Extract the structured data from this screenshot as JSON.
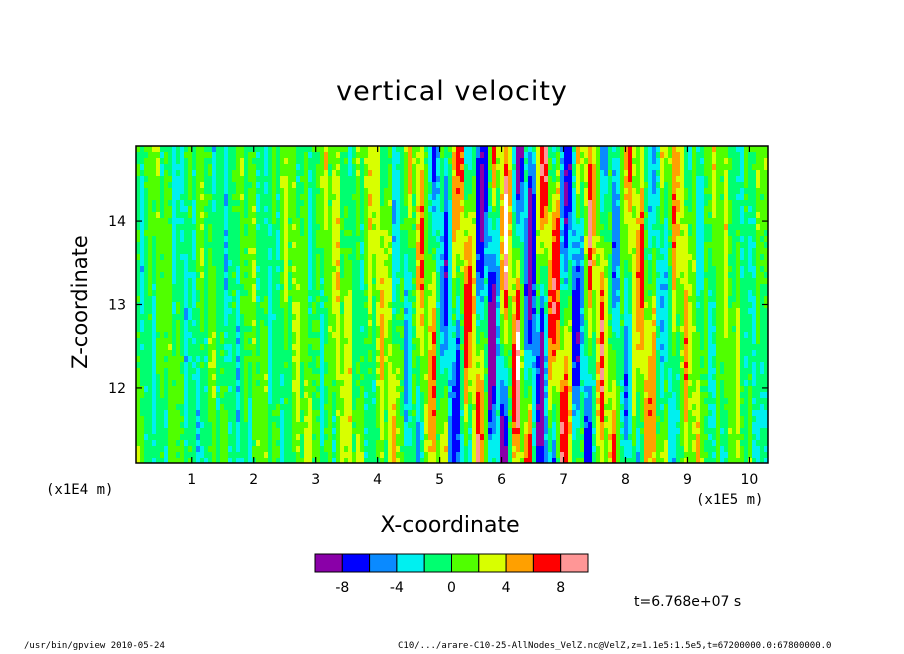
{
  "chart_data": {
    "type": "heatmap",
    "title": "vertical velocity",
    "xlabel": "X-coordinate",
    "ylabel": "Z-coordinate",
    "x_unit_label": "(x1E5 m)",
    "y_unit_label": "(x1E4 m)",
    "xlim": [
      0.1,
      10.3
    ],
    "ylim": [
      11.1,
      14.9
    ],
    "x_ticks": [
      "1",
      "2",
      "3",
      "4",
      "5",
      "6",
      "7",
      "8",
      "9",
      "10"
    ],
    "x_tick_values": [
      1,
      2,
      3,
      4,
      5,
      6,
      7,
      8,
      9,
      10
    ],
    "y_ticks": [
      "12",
      "13",
      "14"
    ],
    "y_tick_values": [
      12,
      13,
      14
    ],
    "colorbar": {
      "levels": [
        -10,
        -8,
        -6,
        -4,
        -2,
        0,
        2,
        4,
        6,
        8,
        10
      ],
      "colors": [
        "#8a00a8",
        "#0000ff",
        "#0a8aff",
        "#00f0f0",
        "#00ff70",
        "#50ff00",
        "#d8ff00",
        "#ffa000",
        "#ff0000",
        "#ff9696"
      ],
      "tick_labels": [
        "-8",
        "-4",
        "0",
        "4",
        "8"
      ],
      "tick_values": [
        -8,
        -4,
        0,
        4,
        8
      ]
    },
    "time_label": "t=6.768e+07 s"
  },
  "footer": {
    "left": "/usr/bin/gpview  2010-05-24",
    "right": "C10/.../arare-C10-25-AllNodes_VelZ.nc@VelZ,z=1.1e5:1.5e5,t=67200000.0:67800000.0"
  }
}
